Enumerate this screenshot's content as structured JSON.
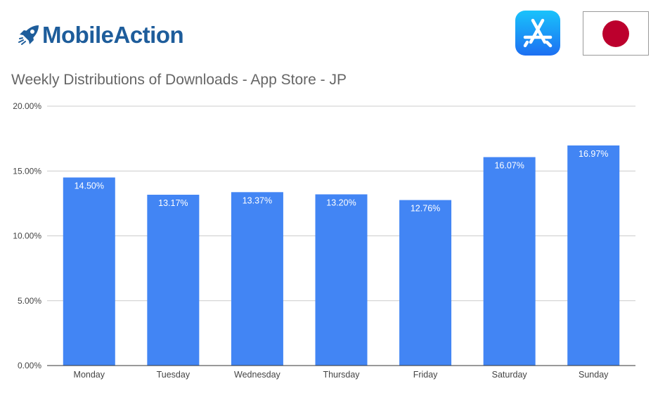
{
  "brand": {
    "name": "MobileAction"
  },
  "icons": {
    "store": "app-store-icon",
    "country": "japan-flag-icon",
    "brand": "rocket-icon"
  },
  "colors": {
    "bar": "#4285f4",
    "brand": "#1e5d9b",
    "flag_red": "#bc002d",
    "appstore": "#1a8cf6"
  },
  "chart_data": {
    "type": "bar",
    "title": "Weekly Distributions of Downloads - App Store - JP",
    "categories": [
      "Monday",
      "Tuesday",
      "Wednesday",
      "Thursday",
      "Friday",
      "Saturday",
      "Sunday"
    ],
    "values": [
      14.5,
      13.17,
      13.37,
      13.2,
      12.76,
      16.07,
      16.97
    ],
    "data_labels": [
      "14.50%",
      "13.17%",
      "13.37%",
      "13.20%",
      "12.76%",
      "16.07%",
      "16.97%"
    ],
    "ylim": [
      0,
      20
    ],
    "yticks": [
      0,
      5,
      10,
      15,
      20
    ],
    "ytick_labels": [
      "0.00%",
      "5.00%",
      "10.00%",
      "15.00%",
      "20.00%"
    ],
    "xlabel": "",
    "ylabel": "",
    "grid": true,
    "legend": "none"
  }
}
